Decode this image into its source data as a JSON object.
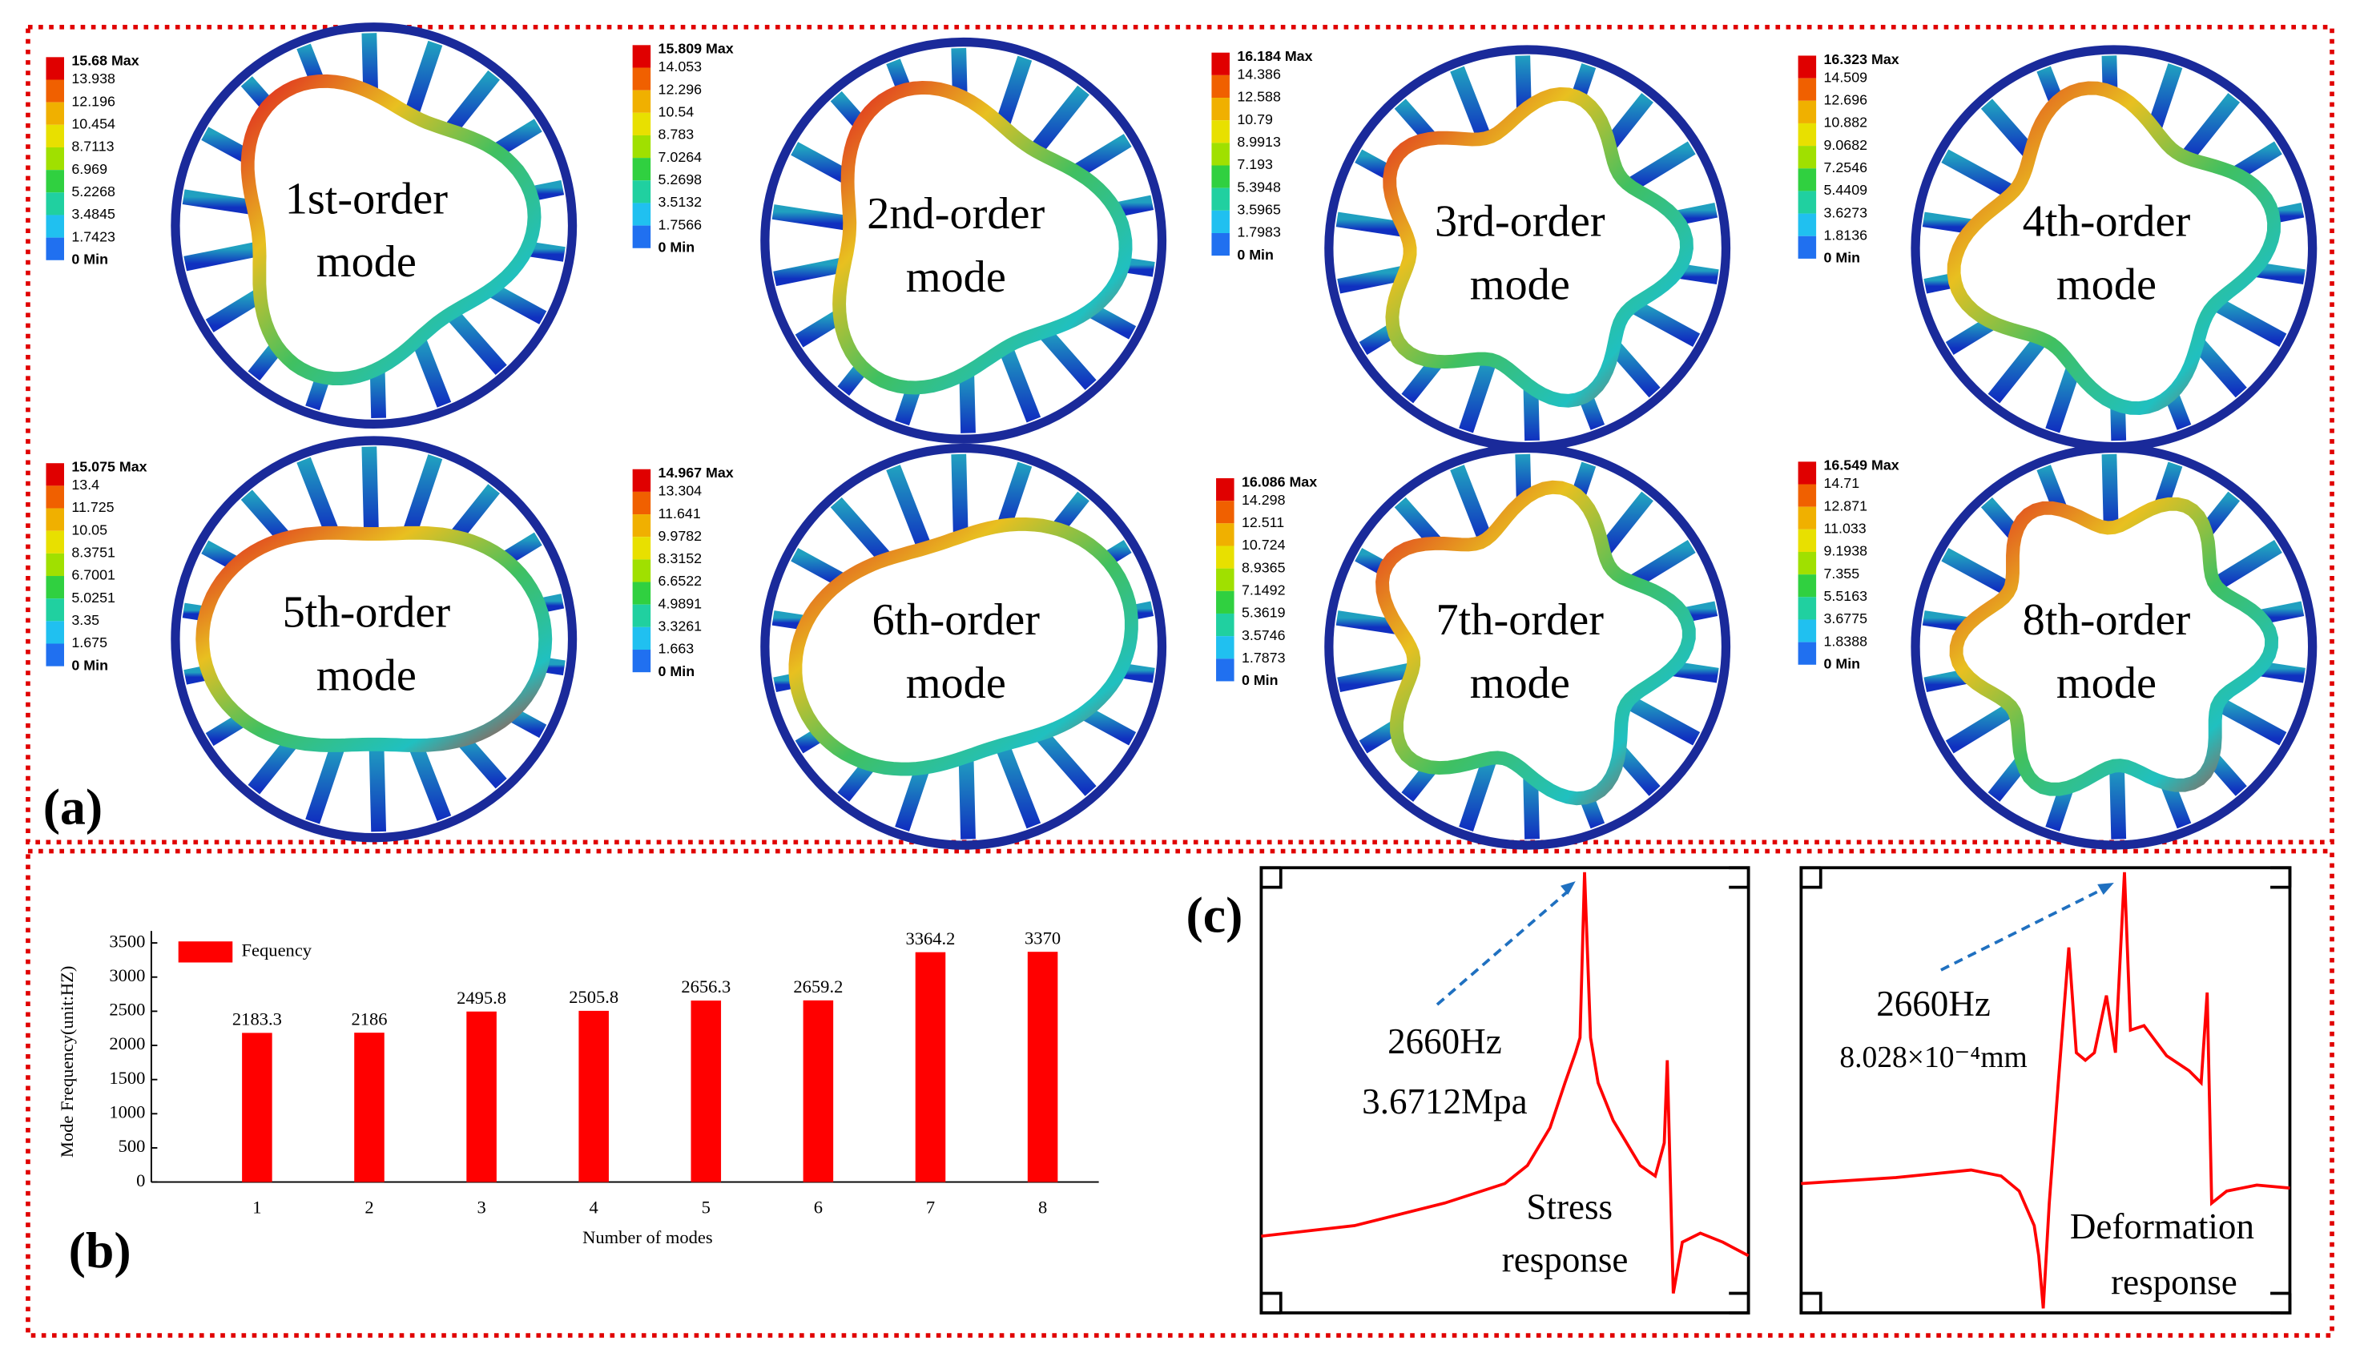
{
  "panel_a": {
    "label": "(a)",
    "modes": [
      {
        "label": [
          "1st-order",
          "mode"
        ],
        "legend": [
          "15.68 Max",
          "13.938",
          "12.196",
          "10.454",
          "8.7113",
          "6.969",
          "5.2268",
          "3.4845",
          "1.7423",
          "0 Min"
        ]
      },
      {
        "label": [
          "2nd-order",
          "mode"
        ],
        "legend": [
          "15.809 Max",
          "14.053",
          "12.296",
          "10.54",
          "8.783",
          "7.0264",
          "5.2698",
          "3.5132",
          "1.7566",
          "0 Min"
        ]
      },
      {
        "label": [
          "3rd-order",
          "mode"
        ],
        "legend": [
          "16.184 Max",
          "14.386",
          "12.588",
          "10.79",
          "8.9913",
          "7.193",
          "5.3948",
          "3.5965",
          "1.7983",
          "0 Min"
        ]
      },
      {
        "label": [
          "4th-order",
          "mode"
        ],
        "legend": [
          "16.323 Max",
          "14.509",
          "12.696",
          "10.882",
          "9.0682",
          "7.2546",
          "5.4409",
          "3.6273",
          "1.8136",
          "0 Min"
        ]
      },
      {
        "label": [
          "5th-order",
          "mode"
        ],
        "legend": [
          "15.075 Max",
          "13.4",
          "11.725",
          "10.05",
          "8.3751",
          "6.7001",
          "5.0251",
          "3.35",
          "1.675",
          "0 Min"
        ]
      },
      {
        "label": [
          "6th-order",
          "mode"
        ],
        "legend": [
          "14.967 Max",
          "13.304",
          "11.641",
          "9.9782",
          "8.3152",
          "6.6522",
          "4.9891",
          "3.3261",
          "1.663",
          "0 Min"
        ]
      },
      {
        "label": [
          "7th-order",
          "mode"
        ],
        "legend": [
          "16.086 Max",
          "14.298",
          "12.511",
          "10.724",
          "8.9365",
          "7.1492",
          "5.3619",
          "3.5746",
          "1.7873",
          "0 Min"
        ]
      },
      {
        "label": [
          "8th-order",
          "mode"
        ],
        "legend": [
          "16.549 Max",
          "14.71",
          "12.871",
          "11.033",
          "9.1938",
          "7.355",
          "5.5163",
          "3.6775",
          "1.8388",
          "0 Min"
        ]
      }
    ]
  },
  "chart_data": {
    "type": "bar",
    "panel_label": "(b)",
    "categories": [
      "1",
      "2",
      "3",
      "4",
      "5",
      "6",
      "7",
      "8"
    ],
    "series": [
      {
        "name": "Fequency",
        "color": "#ff0000",
        "values": [
          2183.3,
          2186,
          2495.8,
          2505.8,
          2656.3,
          2659.2,
          3364.2,
          3370
        ]
      }
    ],
    "xlabel": "Number of modes",
    "ylabel": "Mode Frequency(unit:HZ)",
    "ylim": [
      0,
      3500
    ],
    "yticks": [
      0,
      500,
      1000,
      1500,
      2000,
      2500,
      3000,
      3500
    ],
    "legend": "upper left"
  },
  "panel_c": {
    "label": "(c)",
    "stress": {
      "frequency": "2660Hz",
      "peak": "3.6712Mpa",
      "caption": [
        "Stress",
        "response"
      ]
    },
    "deformation": {
      "frequency": "2660Hz",
      "peak": "8.028×10⁻⁴mm",
      "caption": [
        "Deformation",
        "response"
      ]
    }
  }
}
